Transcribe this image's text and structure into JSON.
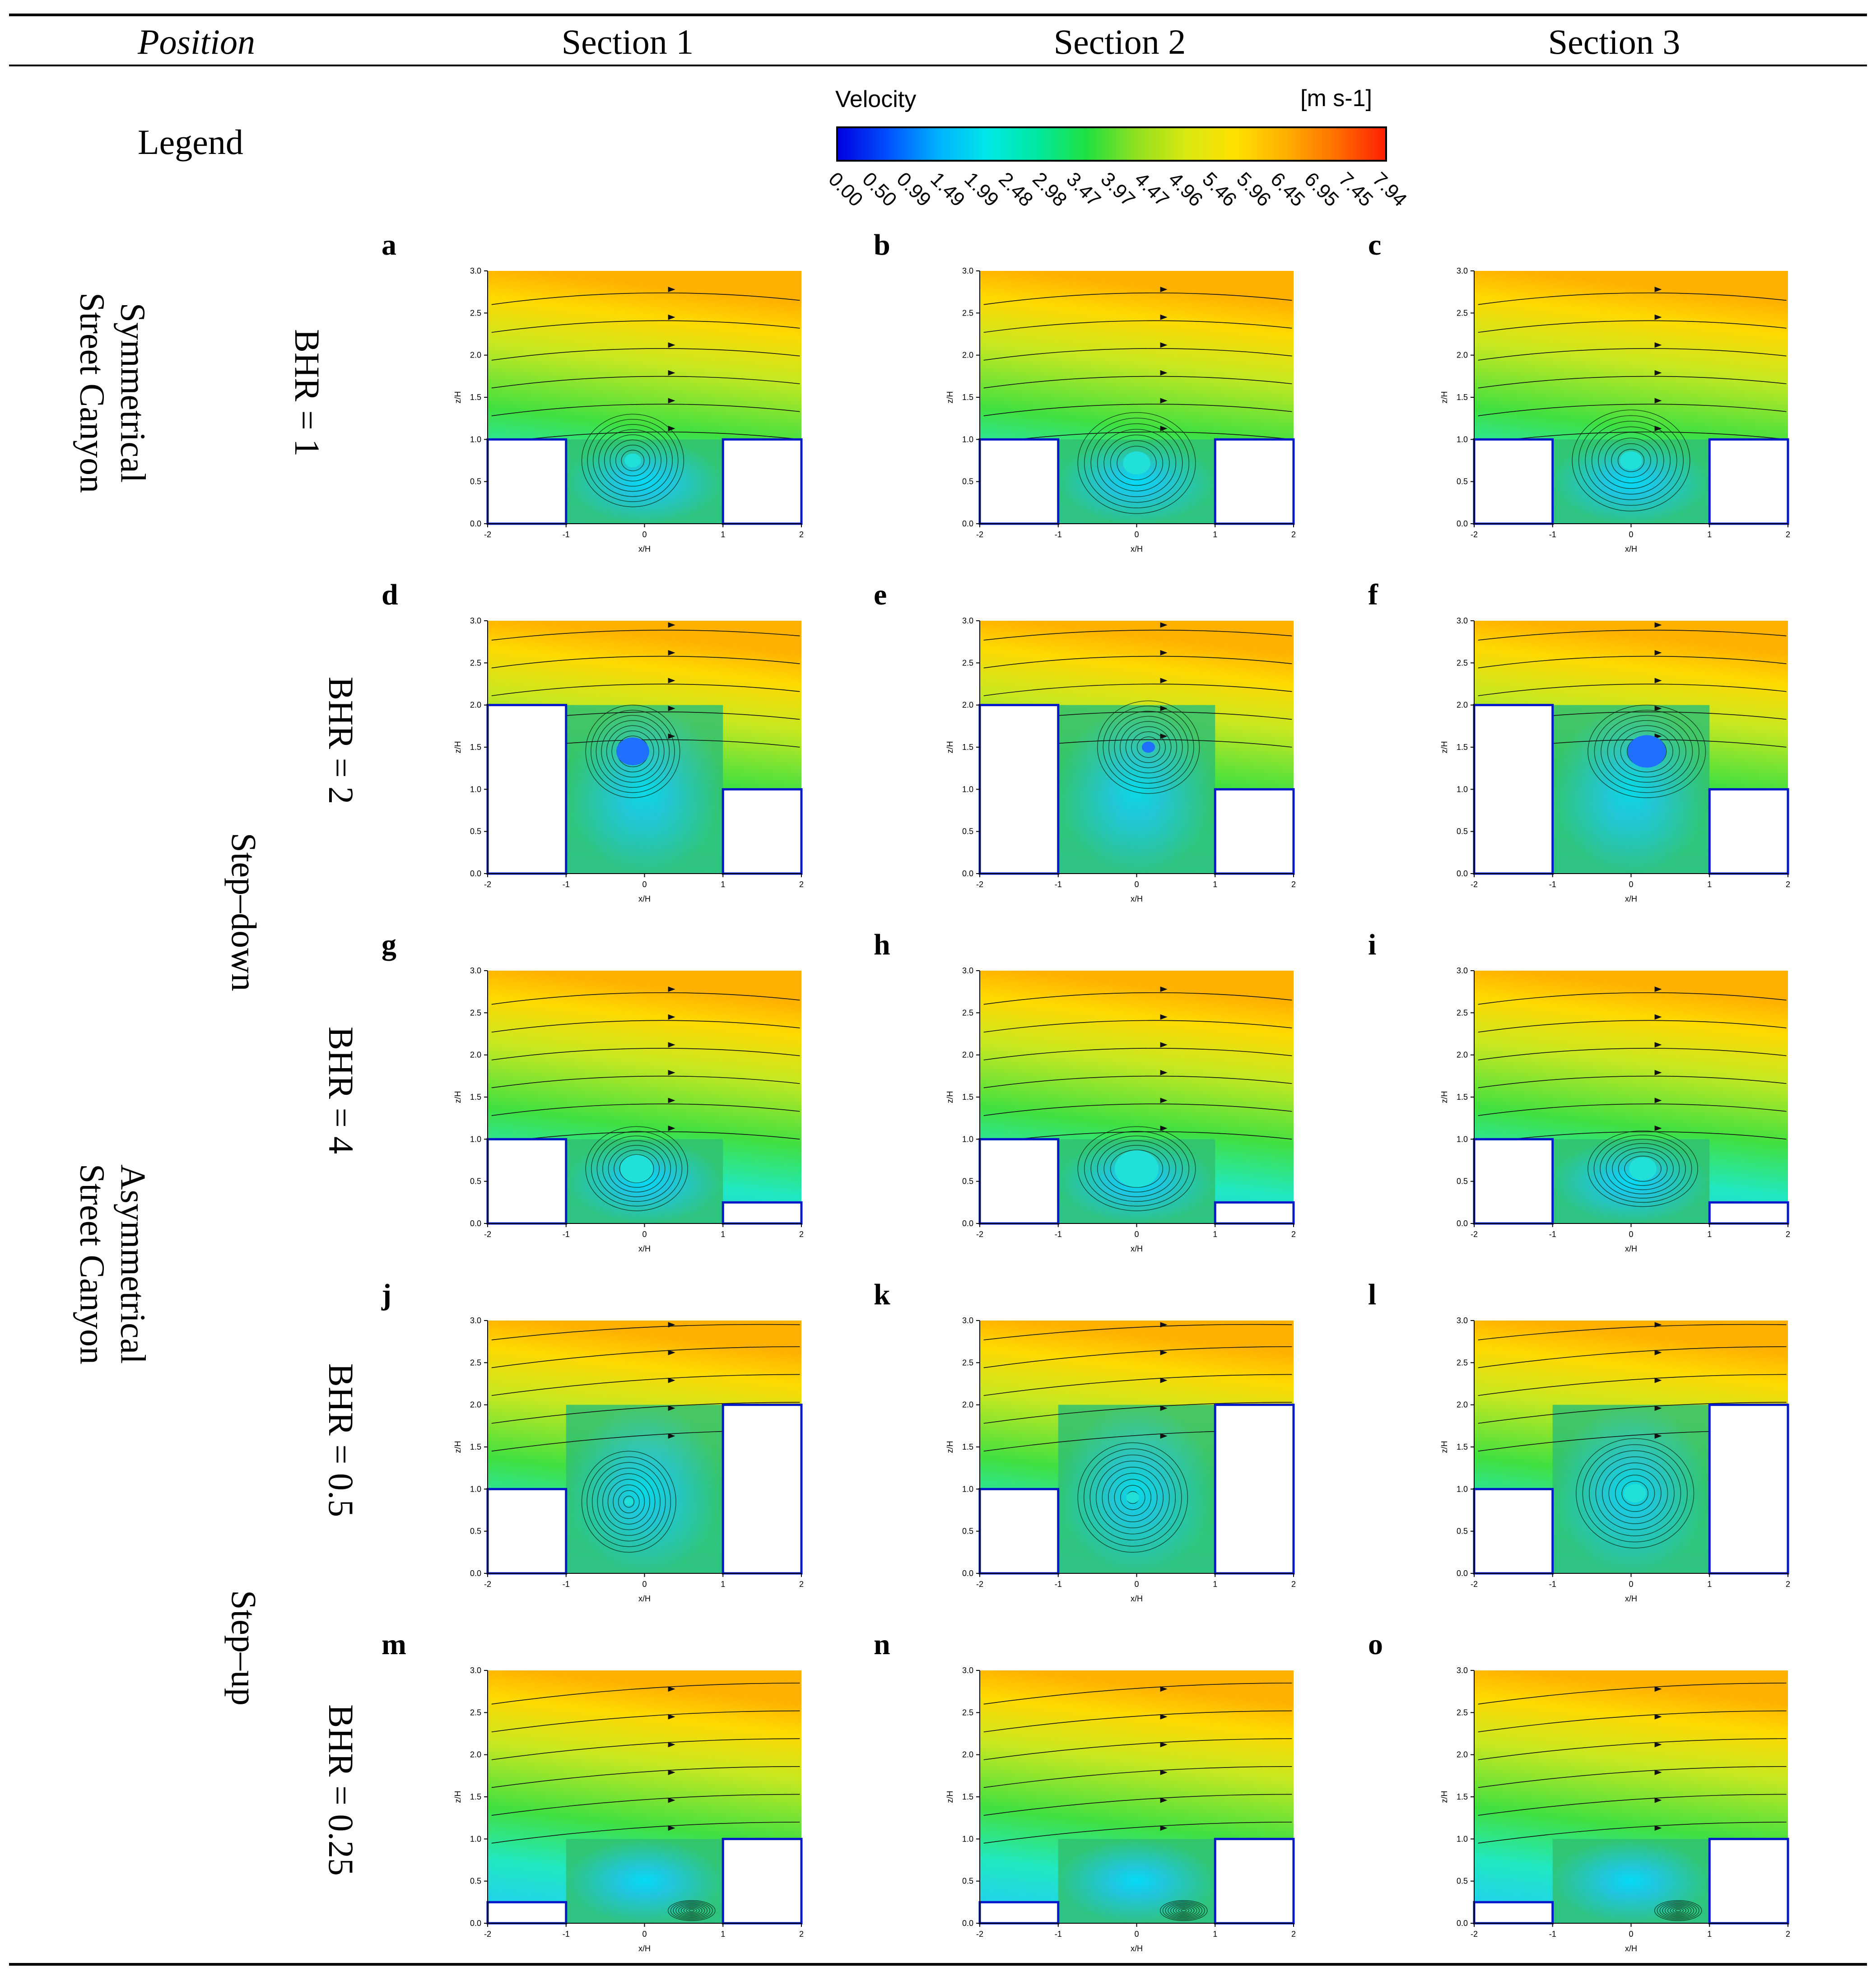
{
  "header": {
    "position": "Position",
    "sections": [
      "Section 1",
      "Section 2",
      "Section 3"
    ]
  },
  "legend": {
    "label": "Legend",
    "colorbar": {
      "title": "Velocity",
      "unit": "[m s-1]",
      "ticks": [
        "0.00",
        "0.50",
        "0.99",
        "1.49",
        "1.99",
        "2.48",
        "2.98",
        "3.47",
        "3.97",
        "4.47",
        "4.96",
        "5.46",
        "5.96",
        "6.45",
        "6.95",
        "7.45",
        "7.94"
      ],
      "colors": [
        "#0000e0",
        "#0050ff",
        "#00b0ff",
        "#00e8e8",
        "#00e8a0",
        "#20e040",
        "#90e020",
        "#d8e810",
        "#ffe000",
        "#ffb000",
        "#ff7000",
        "#ff2000"
      ]
    }
  },
  "groups": {
    "symmetrical": "Symmetrical Street Canyon",
    "asymmetrical": "Asymmetrical Street Canyon",
    "stepdown": "Step–down",
    "stepup": "Step–up"
  },
  "rows": [
    {
      "bhr": "BHR = 1"
    },
    {
      "bhr": "BHR = 2"
    },
    {
      "bhr": "BHR = 4"
    },
    {
      "bhr": "BHR = 0.5"
    },
    {
      "bhr": "BHR = 0.25"
    }
  ],
  "axes": {
    "xlabel": "x/H",
    "ylabel": "z/H",
    "xticks": [
      "-2",
      "-1",
      "0",
      "1",
      "2"
    ],
    "yticks": [
      "0.0",
      "0.5",
      "1.0",
      "1.5",
      "2.0",
      "2.5",
      "3.0"
    ]
  },
  "panels": [
    {
      "letter": "a",
      "row": 0,
      "col": 0,
      "left_h": 1,
      "right_h": 1,
      "vortex": [
        -0.15,
        0.75
      ],
      "core": 0.15,
      "vort_r": [
        0.65,
        0.55
      ]
    },
    {
      "letter": "b",
      "row": 0,
      "col": 1,
      "left_h": 1,
      "right_h": 1,
      "vortex": [
        0.0,
        0.72
      ],
      "core": 0.25,
      "vort_r": [
        0.75,
        0.6
      ]
    },
    {
      "letter": "c",
      "row": 0,
      "col": 2,
      "left_h": 1,
      "right_h": 1,
      "vortex": [
        0.0,
        0.75
      ],
      "core": 0.2,
      "vort_r": [
        0.75,
        0.6
      ]
    },
    {
      "letter": "d",
      "row": 1,
      "col": 0,
      "left_h": 2,
      "right_h": 1,
      "vortex": [
        -0.15,
        1.45
      ],
      "core": 0.3,
      "vort_r": [
        0.6,
        0.55
      ]
    },
    {
      "letter": "e",
      "row": 1,
      "col": 1,
      "left_h": 2,
      "right_h": 1,
      "vortex": [
        0.15,
        1.5
      ],
      "core": 0.12,
      "vort_r": [
        0.65,
        0.55
      ]
    },
    {
      "letter": "f",
      "row": 1,
      "col": 2,
      "left_h": 2,
      "right_h": 1,
      "vortex": [
        0.2,
        1.45
      ],
      "core": 0.35,
      "vort_r": [
        0.75,
        0.55
      ]
    },
    {
      "letter": "g",
      "row": 2,
      "col": 0,
      "left_h": 1,
      "right_h": 0.25,
      "vortex": [
        -0.1,
        0.65
      ],
      "core": 0.3,
      "vort_r": [
        0.65,
        0.5
      ]
    },
    {
      "letter": "h",
      "row": 2,
      "col": 1,
      "left_h": 1,
      "right_h": 0.25,
      "vortex": [
        0.0,
        0.65
      ],
      "core": 0.4,
      "vort_r": [
        0.75,
        0.5
      ]
    },
    {
      "letter": "i",
      "row": 2,
      "col": 2,
      "left_h": 1,
      "right_h": 0.25,
      "vortex": [
        0.15,
        0.65
      ],
      "core": 0.25,
      "vort_r": [
        0.7,
        0.45
      ]
    },
    {
      "letter": "j",
      "row": 3,
      "col": 0,
      "left_h": 1,
      "right_h": 2,
      "vortex": [
        -0.2,
        0.85
      ],
      "core": 0.08,
      "vort_r": [
        0.6,
        0.6
      ]
    },
    {
      "letter": "k",
      "row": 3,
      "col": 1,
      "left_h": 1,
      "right_h": 2,
      "vortex": [
        -0.05,
        0.9
      ],
      "core": 0.12,
      "vort_r": [
        0.7,
        0.65
      ]
    },
    {
      "letter": "l",
      "row": 3,
      "col": 2,
      "left_h": 1,
      "right_h": 2,
      "vortex": [
        0.05,
        0.95
      ],
      "core": 0.2,
      "vort_r": [
        0.75,
        0.65
      ]
    },
    {
      "letter": "m",
      "row": 4,
      "col": 0,
      "left_h": 0.25,
      "right_h": 1,
      "vortex": [
        0.6,
        0.15
      ],
      "core": 0.0,
      "vort_r": [
        0.3,
        0.12
      ]
    },
    {
      "letter": "n",
      "row": 4,
      "col": 1,
      "left_h": 0.25,
      "right_h": 1,
      "vortex": [
        0.6,
        0.15
      ],
      "core": 0.0,
      "vort_r": [
        0.3,
        0.12
      ]
    },
    {
      "letter": "o",
      "row": 4,
      "col": 2,
      "left_h": 0.25,
      "right_h": 1,
      "vortex": [
        0.6,
        0.15
      ],
      "core": 0.0,
      "vort_r": [
        0.3,
        0.12
      ]
    }
  ]
}
